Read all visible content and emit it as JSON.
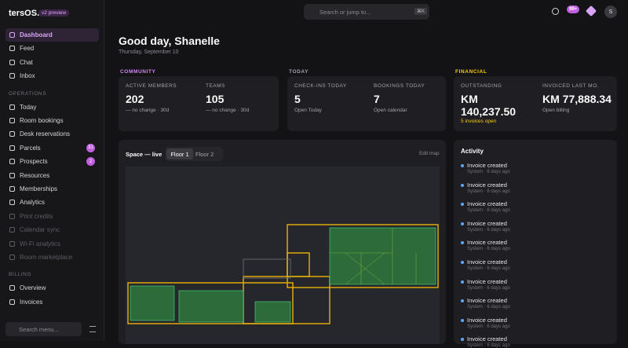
{
  "brand": {
    "name": "tersOS.",
    "badge": "v2 preview"
  },
  "topbar": {
    "search": "Search or jump to...",
    "shortcut": "⌘K",
    "notifications": "99+",
    "avatar": "S"
  },
  "sidebar": {
    "sections": [
      {
        "items": [
          {
            "label": "Dashboard",
            "active": true
          },
          {
            "label": "Feed"
          },
          {
            "label": "Chat"
          },
          {
            "label": "Inbox"
          }
        ]
      },
      {
        "title": "OPERATIONS",
        "items": [
          {
            "label": "Today"
          },
          {
            "label": "Room bookings"
          },
          {
            "label": "Desk reservations"
          },
          {
            "label": "Parcels",
            "badge": "31"
          },
          {
            "label": "Prospects",
            "badge": "2"
          },
          {
            "label": "Resources"
          },
          {
            "label": "Memberships"
          },
          {
            "label": "Analytics"
          },
          {
            "label": "Print credits",
            "disabled": true
          },
          {
            "label": "Calendar sync",
            "disabled": true
          },
          {
            "label": "Wi-Fi analytics",
            "disabled": true
          },
          {
            "label": "Room marketplace",
            "disabled": true
          }
        ]
      },
      {
        "title": "BILLING",
        "items": [
          {
            "label": "Overview"
          },
          {
            "label": "Invoices"
          }
        ]
      }
    ],
    "search": "Search menu..."
  },
  "header": {
    "title": "Good day, Shanelle",
    "date": "Thursday, September 10"
  },
  "cards": [
    {
      "label": "COMMUNITY",
      "color": "#d08cf5",
      "stats": [
        {
          "name": "ACTIVE MEMBERS",
          "value": "202",
          "note": "— no change · 30d"
        },
        {
          "name": "TEAMS",
          "value": "105",
          "note": "— no change · 30d"
        }
      ]
    },
    {
      "label": "TODAY",
      "color": "#a1a1aa",
      "stats": [
        {
          "name": "CHECK-INS TODAY",
          "value": "5",
          "note": "Open Today"
        },
        {
          "name": "BOOKINGS TODAY",
          "value": "7",
          "note": "Open calendar"
        }
      ]
    },
    {
      "label": "FINANCIAL",
      "color": "#facc15",
      "stats": [
        {
          "name": "OUTSTANDING",
          "value": "KM 140,237.50",
          "note": "5 invoices open",
          "note_color": "#facc15"
        },
        {
          "name": "INVOICED LAST MO.",
          "value": "KM 77,888.34",
          "note": "Open billing"
        }
      ]
    }
  ],
  "map": {
    "title": "Space — live",
    "tabs": [
      "Floor 1",
      "Floor 2"
    ],
    "action": "Edit map"
  },
  "activity": {
    "title": "Activity",
    "items": [
      {
        "event": "Invoice created",
        "meta": "System · 6 days ago"
      },
      {
        "event": "Invoice created",
        "meta": "System · 6 days ago"
      },
      {
        "event": "Invoice created",
        "meta": "System · 6 days ago"
      },
      {
        "event": "Invoice created",
        "meta": "System · 6 days ago"
      },
      {
        "event": "Invoice created",
        "meta": "System · 6 days ago"
      },
      {
        "event": "Invoice created",
        "meta": "System · 6 days ago"
      },
      {
        "event": "Invoice created",
        "meta": "System · 6 days ago"
      },
      {
        "event": "Invoice created",
        "meta": "System · 6 days ago"
      },
      {
        "event": "Invoice created",
        "meta": "System · 6 days ago"
      },
      {
        "event": "Invoice created",
        "meta": "System · 6 days ago"
      }
    ]
  }
}
